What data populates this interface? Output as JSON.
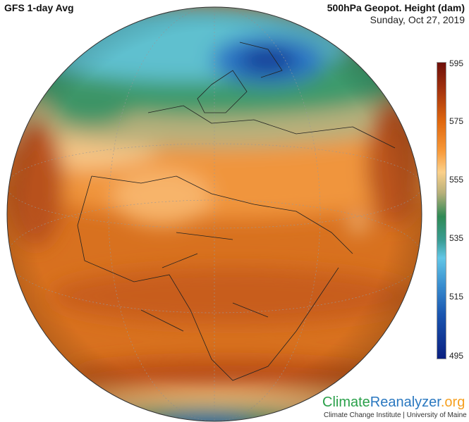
{
  "header": {
    "left_title": "GFS 1-day Avg",
    "right_title": "500hPa Geopot. Height (dam)",
    "date": "Sunday, Oct 27, 2019"
  },
  "colorbar": {
    "ticks": [
      "595",
      "575",
      "555",
      "535",
      "515",
      "495"
    ],
    "min": 495,
    "max": 595,
    "colors": {
      "high": "#6e0f0a",
      "orange": "#e0680f",
      "tan": "#fbd08a",
      "green": "#2f8a55",
      "cyan": "#62c6e6",
      "blue": "#1a56b0",
      "low": "#0a1f80"
    }
  },
  "footer": {
    "logo_part1": "Climate",
    "logo_part2": "Reanalyzer",
    "logo_part3": ".org",
    "credit": "Climate Change Institute | University of Maine"
  }
}
